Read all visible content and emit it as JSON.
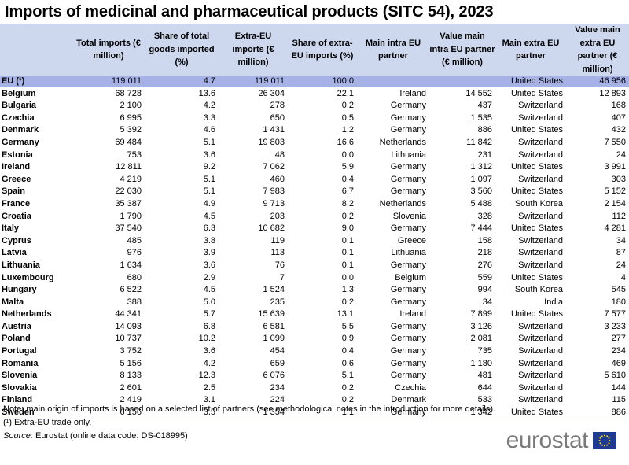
{
  "title": "Imports of medicinal and pharmaceutical products (SITC 54), 2023",
  "columns": [
    "",
    "Total imports (€ million)",
    "Share of total goods imported (%)",
    "Extra-EU imports (€ million)",
    "Share of extra-EU imports (%)",
    "Main intra EU partner",
    "Value main intra EU partner (€ million)",
    "Main extra EU partner",
    "Value main extra EU partner (€ million)"
  ],
  "rows": [
    [
      "EU (¹)",
      "119 011",
      "4.7",
      "119 011",
      "100.0",
      "",
      "",
      "United States",
      "46 956"
    ],
    [
      "Belgium",
      "68 728",
      "13.6",
      "26 304",
      "22.1",
      "Ireland",
      "14 552",
      "United States",
      "12 893"
    ],
    [
      "Bulgaria",
      "2 100",
      "4.2",
      "278",
      "0.2",
      "Germany",
      "437",
      "Switzerland",
      "168"
    ],
    [
      "Czechia",
      "6 995",
      "3.3",
      "650",
      "0.5",
      "Germany",
      "1 535",
      "Switzerland",
      "407"
    ],
    [
      "Denmark",
      "5 392",
      "4.6",
      "1 431",
      "1.2",
      "Germany",
      "886",
      "United States",
      "432"
    ],
    [
      "Germany",
      "69 484",
      "5.1",
      "19 803",
      "16.6",
      "Netherlands",
      "11 842",
      "Switzerland",
      "7 550"
    ],
    [
      "Estonia",
      "753",
      "3.6",
      "48",
      "0.0",
      "Lithuania",
      "231",
      "Switzerland",
      "24"
    ],
    [
      "Ireland",
      "12 811",
      "9.2",
      "7 062",
      "5.9",
      "Germany",
      "1 312",
      "United States",
      "3 991"
    ],
    [
      "Greece",
      "4 219",
      "5.1",
      "460",
      "0.4",
      "Germany",
      "1 097",
      "Switzerland",
      "303"
    ],
    [
      "Spain",
      "22 030",
      "5.1",
      "7 983",
      "6.7",
      "Germany",
      "3 560",
      "United States",
      "5 152"
    ],
    [
      "France",
      "35 387",
      "4.9",
      "9 713",
      "8.2",
      "Netherlands",
      "5 488",
      "South Korea",
      "2 154"
    ],
    [
      "Croatia",
      "1 790",
      "4.5",
      "203",
      "0.2",
      "Slovenia",
      "328",
      "Switzerland",
      "112"
    ],
    [
      "Italy",
      "37 540",
      "6.3",
      "10 682",
      "9.0",
      "Germany",
      "7 444",
      "United States",
      "4 281"
    ],
    [
      "Cyprus",
      "485",
      "3.8",
      "119",
      "0.1",
      "Greece",
      "158",
      "Switzerland",
      "34"
    ],
    [
      "Latvia",
      "976",
      "3.9",
      "113",
      "0.1",
      "Lithuania",
      "218",
      "Switzerland",
      "87"
    ],
    [
      "Lithuania",
      "1 634",
      "3.6",
      "76",
      "0.1",
      "Germany",
      "276",
      "Switzerland",
      "24"
    ],
    [
      "Luxembourg",
      "680",
      "2.9",
      "7",
      "0.0",
      "Belgium",
      "559",
      "United States",
      "4"
    ],
    [
      "Hungary",
      "6 522",
      "4.5",
      "1 524",
      "1.3",
      "Germany",
      "994",
      "South Korea",
      "545"
    ],
    [
      "Malta",
      "388",
      "5.0",
      "235",
      "0.2",
      "Germany",
      "34",
      "India",
      "180"
    ],
    [
      "Netherlands",
      "44 341",
      "5.7",
      "15 639",
      "13.1",
      "Ireland",
      "7 899",
      "United States",
      "7 577"
    ],
    [
      "Austria",
      "14 093",
      "6.8",
      "6 581",
      "5.5",
      "Germany",
      "3 126",
      "Switzerland",
      "3 233"
    ],
    [
      "Poland",
      "10 737",
      "10.2",
      "1 099",
      "0.9",
      "Germany",
      "2 081",
      "Switzerland",
      "277"
    ],
    [
      "Portugal",
      "3 752",
      "3.6",
      "454",
      "0.4",
      "Germany",
      "735",
      "Switzerland",
      "234"
    ],
    [
      "Romania",
      "5 156",
      "4.2",
      "659",
      "0.6",
      "Germany",
      "1 180",
      "Switzerland",
      "469"
    ],
    [
      "Slovenia",
      "8 133",
      "12.3",
      "6 076",
      "5.1",
      "Germany",
      "481",
      "Switzerland",
      "5 610"
    ],
    [
      "Slovakia",
      "2 601",
      "2.5",
      "234",
      "0.2",
      "Czechia",
      "644",
      "Switzerland",
      "144"
    ],
    [
      "Finland",
      "2 419",
      "3.1",
      "224",
      "0.2",
      "Denmark",
      "533",
      "Switzerland",
      "115"
    ],
    [
      "Sweden",
      "6 156",
      "3.5",
      "1 354",
      "1.1",
      "Germany",
      "1 342",
      "United States",
      "886"
    ]
  ],
  "notes": {
    "note": "Note: main origin of imports is based on a selected list of partners (see methodological notes in the introduction for more details).",
    "footnote": "(¹) Extra-EU trade only.",
    "source_label": "Source:",
    "source_text": " Eurostat (online data code: DS-018995)"
  },
  "logo": {
    "text": "eurostat",
    "flag_color": "#1e3b91",
    "star_color": "#ffdd00"
  },
  "colors": {
    "header_bg": "#cdd8ef",
    "eu_row_bg": "#a6b2e6"
  }
}
